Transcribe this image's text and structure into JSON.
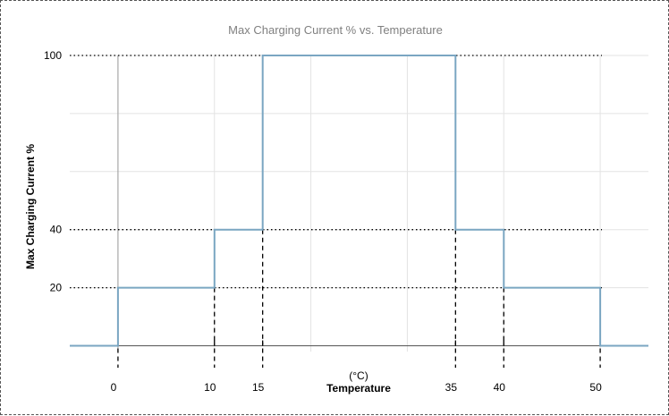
{
  "chart_data": {
    "type": "line",
    "step": true,
    "title": "Max Charging Current % vs. Temperature",
    "xlabel": "Temperature",
    "xunit": "(°C)",
    "ylabel": "Max Charging Current %",
    "xlim": [
      -5,
      55
    ],
    "ylim": [
      -2,
      100
    ],
    "x_ticks": [
      0,
      10,
      15,
      35,
      40,
      50
    ],
    "y_ticks": [
      20,
      40,
      100
    ],
    "grid": true,
    "series": [
      {
        "color": "#7aa6c2",
        "points": [
          [
            -5,
            0
          ],
          [
            0,
            0
          ],
          [
            0,
            20
          ],
          [
            10,
            20
          ],
          [
            10,
            40
          ],
          [
            15,
            40
          ],
          [
            15,
            100
          ],
          [
            35,
            100
          ],
          [
            35,
            40
          ],
          [
            40,
            40
          ],
          [
            40,
            20
          ],
          [
            50,
            20
          ],
          [
            50,
            0
          ],
          [
            55,
            0
          ]
        ]
      }
    ]
  }
}
